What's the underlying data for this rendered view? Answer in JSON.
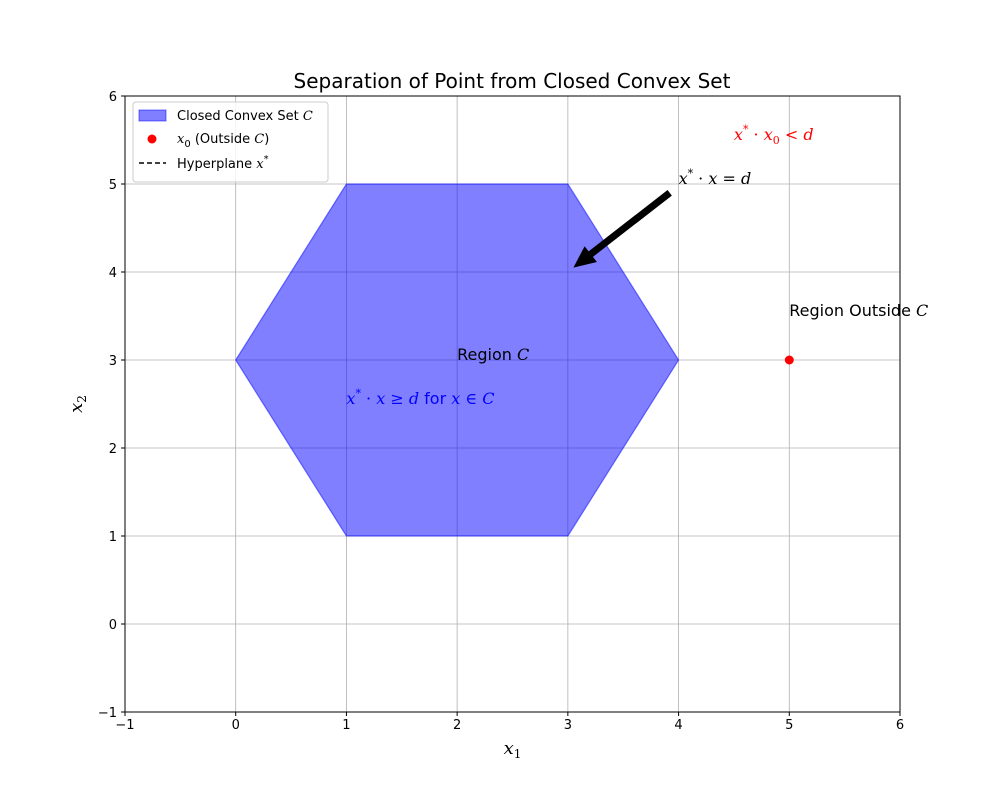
{
  "chart_data": {
    "type": "scatter",
    "title": "Separation of Point from Closed Convex Set",
    "xlabel": "x",
    "xlabel_sub": "1",
    "ylabel": "x",
    "ylabel_sub": "2",
    "xlim": [
      -1,
      6
    ],
    "ylim": [
      -1,
      6
    ],
    "xticks": [
      "−1",
      "0",
      "1",
      "2",
      "3",
      "4",
      "5",
      "6"
    ],
    "yticks": [
      "−1",
      "0",
      "1",
      "2",
      "3",
      "4",
      "5",
      "6"
    ],
    "xtick_values": [
      -1,
      0,
      1,
      2,
      3,
      4,
      5,
      6
    ],
    "ytick_values": [
      -1,
      0,
      1,
      2,
      3,
      4,
      5,
      6
    ],
    "grid": true,
    "legend_position": "top-left",
    "polygon": {
      "vertices": [
        [
          0,
          3
        ],
        [
          1,
          5
        ],
        [
          3,
          5
        ],
        [
          4,
          3
        ],
        [
          3,
          1
        ],
        [
          1,
          1
        ]
      ],
      "color": "#0000ff"
    },
    "point": {
      "x": 5,
      "y": 3,
      "color": "#ff0000"
    },
    "arrow": {
      "from": [
        3.92,
        4.9
      ],
      "to": [
        3.05,
        4.05
      ]
    },
    "legend": [
      {
        "text": "Closed Convex Set ",
        "math": "C"
      },
      {
        "text_math_var": "x",
        "text_math_sub": "0",
        "text": " (Outside ",
        "math": "C",
        "tail": ")"
      },
      {
        "text": "Hyperplane ",
        "math": "x",
        "sup": "*"
      }
    ],
    "annotations": {
      "hyperplane_label": {
        "x": 4.0,
        "y": 5.0,
        "text": "x* · x = d"
      },
      "outside_inequality": {
        "x": 4.5,
        "y": 5.5,
        "text": "x* · x₀ < d",
        "color": "#ff0000"
      },
      "region_outside": {
        "x": 5.0,
        "y": 3.5,
        "text_prefix": "Region Outside ",
        "math": "C"
      },
      "region_c": {
        "x": 2.0,
        "y": 3.0,
        "text_prefix": "Region ",
        "math": "C"
      },
      "inside_inequality": {
        "x": 1.0,
        "y": 2.5,
        "text": "x* · x ≥ d for x ∈ C",
        "color": "#0000ff"
      }
    }
  }
}
